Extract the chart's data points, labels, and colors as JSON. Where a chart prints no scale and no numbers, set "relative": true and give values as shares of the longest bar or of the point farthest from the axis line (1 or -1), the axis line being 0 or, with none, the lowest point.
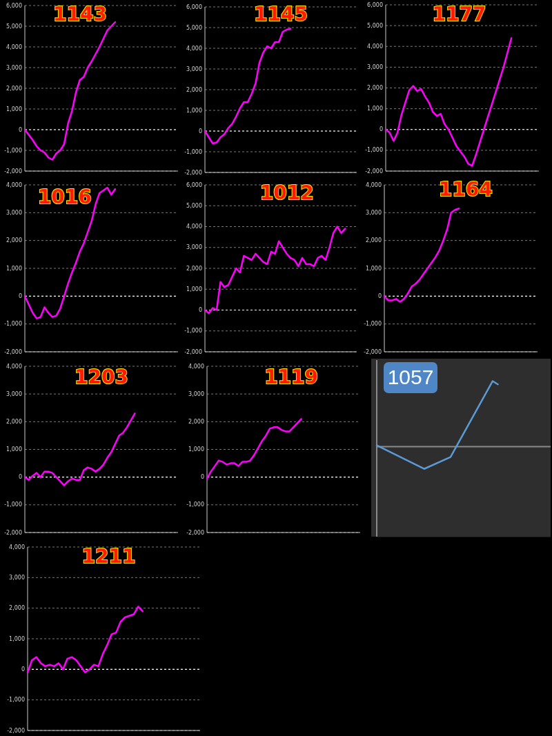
{
  "chart_data": [
    {
      "type": "line",
      "title": "1143",
      "categories": [
        null,
        null,
        null,
        null,
        null,
        null,
        null,
        null,
        null,
        null,
        null,
        null,
        null,
        null,
        null,
        null,
        null,
        null,
        null,
        null,
        null,
        null,
        null,
        null,
        null,
        null,
        null,
        null,
        null,
        null,
        null,
        null,
        null,
        null,
        null,
        null,
        null,
        null,
        null,
        null
      ],
      "series": [
        {
          "color": "#ff00ff",
          "values": [
            0,
            -250,
            -500,
            -800,
            -1000,
            -1100,
            -1350,
            -1450,
            -1150,
            -1000,
            -700,
            300,
            900,
            1800,
            2400,
            2550,
            3000,
            3300,
            3650,
            4000,
            4400,
            4800,
            5000,
            5200,
            null,
            null,
            null,
            null,
            null,
            null,
            null,
            null,
            null,
            null,
            null,
            null,
            null,
            null,
            null,
            null
          ]
        }
      ],
      "ylim": [
        -2000,
        6000
      ],
      "yticks": [
        {
          "value": -2000,
          "label": "-2,000"
        },
        {
          "value": -1000,
          "label": "-1,000"
        },
        {
          "value": 0,
          "label": "0"
        },
        {
          "value": 1000,
          "label": "1,000"
        },
        {
          "value": 2000,
          "label": "2,000"
        },
        {
          "value": 3000,
          "label": "3,000"
        },
        {
          "value": 4000,
          "label": "4,000"
        },
        {
          "value": 5000,
          "label": "5,000"
        },
        {
          "value": 6000,
          "label": "6,000"
        }
      ],
      "grid": "y",
      "tick_labels": "y",
      "ref_lines": [
        {
          "axis": "y",
          "value": 0,
          "color": "#ffffff",
          "line_style": "dashed"
        }
      ]
    },
    {
      "type": "line",
      "title": "1145",
      "categories": [
        null,
        null,
        null,
        null,
        null,
        null,
        null,
        null,
        null,
        null,
        null,
        null,
        null,
        null,
        null,
        null,
        null,
        null,
        null,
        null,
        null,
        null,
        null,
        null,
        null,
        null,
        null,
        null,
        null,
        null,
        null,
        null,
        null,
        null,
        null,
        null,
        null,
        null,
        null,
        null
      ],
      "series": [
        {
          "color": "#ff00ff",
          "values": [
            0,
            -300,
            -600,
            -550,
            -300,
            -150,
            150,
            350,
            700,
            1100,
            1400,
            1400,
            1800,
            2300,
            3300,
            3800,
            4100,
            4000,
            4300,
            4300,
            4800,
            4900,
            4950,
            null,
            null,
            null,
            null,
            null,
            null,
            null,
            null,
            null,
            null,
            null,
            null,
            null,
            null,
            null,
            null,
            null
          ]
        }
      ],
      "ylim": [
        -2000,
        6000
      ],
      "yticks": [
        {
          "value": -2000,
          "label": "-2,000"
        },
        {
          "value": -1000,
          "label": "-1,000"
        },
        {
          "value": 0,
          "label": "0"
        },
        {
          "value": 1000,
          "label": "1,000"
        },
        {
          "value": 2000,
          "label": "2,000"
        },
        {
          "value": 3000,
          "label": "3,000"
        },
        {
          "value": 4000,
          "label": "4,000"
        },
        {
          "value": 5000,
          "label": "5,000"
        },
        {
          "value": 6000,
          "label": "6,000"
        }
      ],
      "grid": "y",
      "tick_labels": "y",
      "ref_lines": [
        {
          "axis": "y",
          "value": 0,
          "color": "#ffffff",
          "line_style": "dashed"
        }
      ]
    },
    {
      "type": "line",
      "title": "1177",
      "categories": [
        null,
        null,
        null,
        null,
        null,
        null,
        null,
        null,
        null,
        null,
        null,
        null,
        null,
        null,
        null,
        null,
        null,
        null,
        null,
        null,
        null,
        null,
        null,
        null,
        null,
        null,
        null,
        null,
        null,
        null,
        null,
        null,
        null,
        null,
        null,
        null,
        null,
        null,
        null,
        null
      ],
      "series": [
        {
          "color": "#ff00ff",
          "values": [
            0,
            -150,
            -550,
            -150,
            700,
            1300,
            1900,
            2100,
            1850,
            1950,
            1600,
            1300,
            850,
            650,
            750,
            250,
            0,
            -400,
            -800,
            -1050,
            -1300,
            -1650,
            -1750,
            -1200,
            -600,
            0,
            600,
            1200,
            1800,
            2400,
            3000,
            3700,
            4400,
            null,
            null,
            null,
            null,
            null,
            null,
            null
          ]
        }
      ],
      "ylim": [
        -2000,
        6000
      ],
      "yticks": [
        {
          "value": -2000,
          "label": "-2,000"
        },
        {
          "value": -1000,
          "label": "-1,000"
        },
        {
          "value": 0,
          "label": "0"
        },
        {
          "value": 1000,
          "label": "1,000"
        },
        {
          "value": 2000,
          "label": "2,000"
        },
        {
          "value": 3000,
          "label": "3,000"
        },
        {
          "value": 4000,
          "label": "4,000"
        },
        {
          "value": 5000,
          "label": "5,000"
        },
        {
          "value": 6000,
          "label": "6,000"
        }
      ],
      "grid": "y",
      "tick_labels": "y",
      "ref_lines": [
        {
          "axis": "y",
          "value": 0,
          "color": "#ffffff",
          "line_style": "dashed"
        }
      ]
    },
    {
      "type": "line",
      "title": "1016",
      "categories": [
        null,
        null,
        null,
        null,
        null,
        null,
        null,
        null,
        null,
        null,
        null,
        null,
        null,
        null,
        null,
        null,
        null,
        null,
        null,
        null,
        null,
        null,
        null,
        null,
        null,
        null,
        null,
        null,
        null,
        null,
        null,
        null,
        null,
        null,
        null,
        null,
        null,
        null,
        null,
        null
      ],
      "series": [
        {
          "color": "#ff00ff",
          "values": [
            0,
            -300,
            -600,
            -800,
            -750,
            -400,
            -600,
            -750,
            -700,
            -450,
            0,
            450,
            850,
            1200,
            1600,
            1900,
            2300,
            2700,
            3300,
            3700,
            3800,
            3900,
            3650,
            3850,
            null,
            null,
            null,
            null,
            null,
            null,
            null,
            null,
            null,
            null,
            null,
            null,
            null,
            null,
            null,
            null
          ]
        }
      ],
      "ylim": [
        -2000,
        4000
      ],
      "yticks": [
        {
          "value": -2000,
          "label": "-2,000"
        },
        {
          "value": -1000,
          "label": "-1,000"
        },
        {
          "value": 0,
          "label": "0"
        },
        {
          "value": 1000,
          "label": "1,000"
        },
        {
          "value": 2000,
          "label": "2,000"
        },
        {
          "value": 3000,
          "label": "3,000"
        },
        {
          "value": 4000,
          "label": "4,000"
        }
      ],
      "grid": "y",
      "tick_labels": "y",
      "ref_lines": [
        {
          "axis": "y",
          "value": 0,
          "color": "#ffffff",
          "line_style": "dashed"
        }
      ]
    },
    {
      "type": "line",
      "title": "1012",
      "categories": [
        null,
        null,
        null,
        null,
        null,
        null,
        null,
        null,
        null,
        null,
        null,
        null,
        null,
        null,
        null,
        null,
        null,
        null,
        null,
        null,
        null,
        null,
        null,
        null,
        null,
        null,
        null,
        null,
        null,
        null,
        null,
        null,
        null,
        null,
        null,
        null,
        null,
        null,
        null,
        null
      ],
      "series": [
        {
          "color": "#ff00ff",
          "values": [
            0,
            -150,
            100,
            0,
            1350,
            1100,
            1200,
            1600,
            2000,
            1800,
            2600,
            2500,
            2400,
            2700,
            2500,
            2300,
            2200,
            2800,
            2700,
            3300,
            3000,
            2700,
            2500,
            2400,
            2100,
            2500,
            2200,
            2200,
            2100,
            2500,
            2600,
            2400,
            3000,
            3700,
            4000,
            3700,
            3900,
            null,
            null,
            null
          ]
        }
      ],
      "ylim": [
        -2000,
        6000
      ],
      "yticks": [
        {
          "value": -2000,
          "label": "-2,000"
        },
        {
          "value": -1000,
          "label": "-1,000"
        },
        {
          "value": 0,
          "label": "0"
        },
        {
          "value": 1000,
          "label": "1,000"
        },
        {
          "value": 2000,
          "label": "2,000"
        },
        {
          "value": 3000,
          "label": "3,000"
        },
        {
          "value": 4000,
          "label": "4,000"
        },
        {
          "value": 5000,
          "label": "5,000"
        },
        {
          "value": 6000,
          "label": "6,000"
        }
      ],
      "grid": "y",
      "tick_labels": "y",
      "ref_lines": [
        {
          "axis": "y",
          "value": 0,
          "color": "#ffffff",
          "line_style": "dashed"
        }
      ]
    },
    {
      "type": "line",
      "title": "1164",
      "categories": [
        null,
        null,
        null,
        null,
        null,
        null,
        null,
        null,
        null,
        null,
        null,
        null,
        null,
        null,
        null,
        null,
        null,
        null,
        null,
        null,
        null,
        null,
        null,
        null,
        null,
        null,
        null,
        null,
        null,
        null,
        null,
        null,
        null,
        null,
        null,
        null,
        null,
        null,
        null,
        null
      ],
      "series": [
        {
          "color": "#ff00ff",
          "values": [
            0,
            -150,
            -150,
            -100,
            -200,
            -100,
            100,
            350,
            450,
            600,
            800,
            1000,
            1200,
            1400,
            1650,
            2000,
            2400,
            3000,
            3100,
            3150,
            null,
            null,
            null,
            null,
            null,
            null,
            null,
            null,
            null,
            null,
            null,
            null,
            null,
            null,
            null,
            null,
            null,
            null,
            null,
            null
          ]
        }
      ],
      "ylim": [
        -2000,
        4000
      ],
      "yticks": [
        {
          "value": -2000,
          "label": "-2,000"
        },
        {
          "value": -1000,
          "label": "-1,000"
        },
        {
          "value": 0,
          "label": "0"
        },
        {
          "value": 1000,
          "label": "1,000"
        },
        {
          "value": 2000,
          "label": "2,000"
        },
        {
          "value": 3000,
          "label": "3,000"
        },
        {
          "value": 4000,
          "label": "4,000"
        }
      ],
      "grid": "y",
      "tick_labels": "y",
      "ref_lines": [
        {
          "axis": "y",
          "value": 0,
          "color": "#ffffff",
          "line_style": "dashed"
        }
      ]
    },
    {
      "type": "line",
      "title": "1203",
      "categories": [
        null,
        null,
        null,
        null,
        null,
        null,
        null,
        null,
        null,
        null,
        null,
        null,
        null,
        null,
        null,
        null,
        null,
        null,
        null,
        null,
        null,
        null,
        null,
        null,
        null,
        null,
        null,
        null,
        null,
        null,
        null,
        null,
        null,
        null,
        null,
        null,
        null,
        null,
        null,
        null
      ],
      "series": [
        {
          "color": "#ff00ff",
          "values": [
            0,
            -100,
            50,
            150,
            0,
            200,
            200,
            150,
            0,
            -150,
            -300,
            -150,
            -50,
            -100,
            -100,
            250,
            350,
            300,
            200,
            300,
            450,
            700,
            900,
            1200,
            1500,
            1600,
            1800,
            2050,
            2300,
            null,
            null,
            null,
            null,
            null,
            null,
            null,
            null,
            null,
            null,
            null
          ]
        }
      ],
      "ylim": [
        -2000,
        4000
      ],
      "yticks": [
        {
          "value": -2000,
          "label": "-2,000"
        },
        {
          "value": -1000,
          "label": "-1,000"
        },
        {
          "value": 0,
          "label": "0"
        },
        {
          "value": 1000,
          "label": "1,000"
        },
        {
          "value": 2000,
          "label": "2,000"
        },
        {
          "value": 3000,
          "label": "3,000"
        },
        {
          "value": 4000,
          "label": "4,000"
        }
      ],
      "grid": "y",
      "tick_labels": "y",
      "ref_lines": [
        {
          "axis": "y",
          "value": 0,
          "color": "#ffffff",
          "line_style": "dashed"
        }
      ]
    },
    {
      "type": "line",
      "title": "1119",
      "categories": [
        null,
        null,
        null,
        null,
        null,
        null,
        null,
        null,
        null,
        null,
        null,
        null,
        null,
        null,
        null,
        null,
        null,
        null,
        null,
        null,
        null,
        null,
        null,
        null,
        null,
        null,
        null,
        null,
        null,
        null,
        null,
        null,
        null,
        null,
        null,
        null,
        null,
        null,
        null,
        null
      ],
      "series": [
        {
          "color": "#ff00ff",
          "values": [
            -50,
            200,
            400,
            600,
            550,
            450,
            500,
            500,
            400,
            550,
            550,
            600,
            800,
            1050,
            1300,
            1500,
            1750,
            1800,
            1800,
            1700,
            1650,
            1650,
            1800,
            1950,
            2100,
            null,
            null,
            null,
            null,
            null,
            null,
            null,
            null,
            null,
            null,
            null,
            null,
            null,
            null,
            null
          ]
        }
      ],
      "ylim": [
        -2000,
        4000
      ],
      "yticks": [
        {
          "value": -2000,
          "label": "-2,000"
        },
        {
          "value": -1000,
          "label": "-1,000"
        },
        {
          "value": 0,
          "label": "0"
        },
        {
          "value": 1000,
          "label": "1,000"
        },
        {
          "value": 2000,
          "label": "2,000"
        },
        {
          "value": 3000,
          "label": "3,000"
        },
        {
          "value": 4000,
          "label": "4,000"
        }
      ],
      "grid": "y",
      "tick_labels": "y",
      "ref_lines": [
        {
          "axis": "y",
          "value": 0,
          "color": "#ffffff",
          "line_style": "dashed"
        }
      ]
    },
    {
      "type": "line",
      "title": "1057",
      "relative": true,
      "categories": [
        null,
        null,
        null,
        null,
        null,
        null,
        null,
        null,
        null,
        null,
        null,
        null,
        null,
        null,
        null,
        null,
        null,
        null,
        null,
        null,
        null,
        null,
        null,
        null,
        null,
        null,
        null,
        null,
        null,
        null,
        null,
        null,
        null,
        null
      ],
      "series": [
        {
          "color": "#5b9bd5",
          "values": [
            0.02,
            null,
            null,
            null,
            null,
            null,
            null,
            null,
            null,
            -0.34,
            null,
            null,
            null,
            null,
            -0.16,
            null,
            null,
            null,
            null,
            null,
            null,
            null,
            1,
            0.95,
            null,
            null,
            null,
            null,
            null,
            null,
            null,
            null,
            null,
            null
          ]
        }
      ],
      "tick_labels": false
    },
    {
      "type": "line",
      "title": "1211",
      "categories": [
        null,
        null,
        null,
        null,
        null,
        null,
        null,
        null,
        null,
        null,
        null,
        null,
        null,
        null,
        null,
        null,
        null,
        null,
        null,
        null,
        null,
        null,
        null,
        null,
        null,
        null,
        null,
        null,
        null,
        null,
        null,
        null,
        null,
        null,
        null,
        null,
        null,
        null,
        null,
        null
      ],
      "series": [
        {
          "color": "#ff00ff",
          "values": [
            -100,
            300,
            400,
            200,
            100,
            150,
            100,
            200,
            0,
            350,
            400,
            300,
            100,
            -100,
            0,
            150,
            100,
            500,
            800,
            1150,
            1200,
            1550,
            1700,
            1750,
            1800,
            2050,
            1900,
            null,
            null,
            null,
            null,
            null,
            null,
            null,
            null,
            null,
            null,
            null,
            null,
            null
          ]
        }
      ],
      "ylim": [
        -2000,
        4000
      ],
      "yticks": [
        {
          "value": -2000,
          "label": "-2,000"
        },
        {
          "value": -1000,
          "label": "-1,000"
        },
        {
          "value": 0,
          "label": "0"
        },
        {
          "value": 1000,
          "label": "1,000"
        },
        {
          "value": 2000,
          "label": "2,000"
        },
        {
          "value": 3000,
          "label": "3,000"
        },
        {
          "value": 4000,
          "label": "4,000"
        }
      ],
      "grid": "y",
      "tick_labels": "y",
      "ref_lines": [
        {
          "axis": "y",
          "value": 0,
          "color": "#ffffff",
          "line_style": "dashed"
        }
      ]
    }
  ]
}
